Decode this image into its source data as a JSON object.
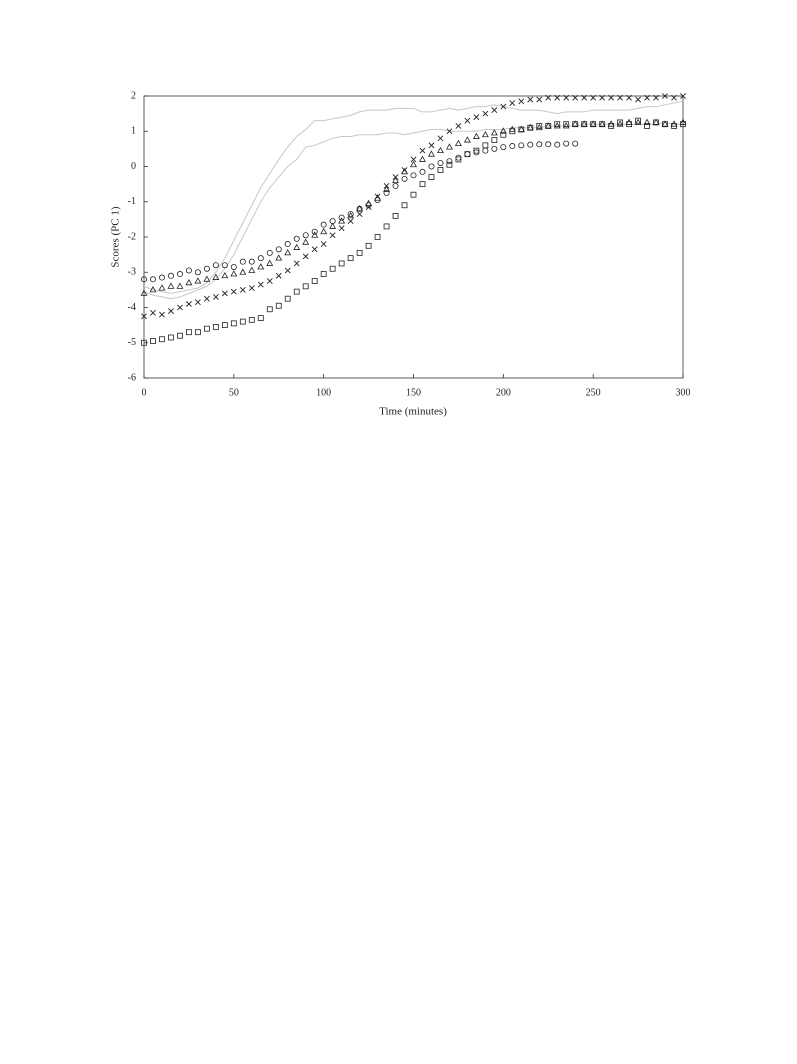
{
  "chart_data": {
    "type": "scatter",
    "xlabel": "Time (minutes)",
    "ylabel": "Scores (PC 1)",
    "xlim": [
      0,
      300
    ],
    "ylim": [
      -6,
      2
    ],
    "xticks": [
      0,
      50,
      100,
      150,
      200,
      250,
      300
    ],
    "yticks": [
      -6,
      -5,
      -4,
      -3,
      -2,
      -1,
      0,
      1,
      2
    ],
    "grid": false,
    "x": [
      0,
      5,
      10,
      15,
      20,
      25,
      30,
      35,
      40,
      45,
      50,
      55,
      60,
      65,
      70,
      75,
      80,
      85,
      90,
      95,
      100,
      105,
      110,
      115,
      120,
      125,
      130,
      135,
      140,
      145,
      150,
      155,
      160,
      165,
      170,
      175,
      180,
      185,
      190,
      195,
      200,
      205,
      210,
      215,
      220,
      225,
      230,
      235,
      240,
      245,
      250,
      255,
      260,
      265,
      270,
      275,
      280,
      285,
      290,
      295,
      300
    ],
    "series": [
      {
        "marker": "line",
        "color": "#c8c8c8",
        "values": [
          -3.4,
          -3.5,
          -3.55,
          -3.6,
          -3.55,
          -3.5,
          -3.45,
          -3.3,
          -3.0,
          -2.6,
          -2.1,
          -1.6,
          -1.1,
          -0.6,
          -0.2,
          0.2,
          0.55,
          0.85,
          1.05,
          1.3,
          1.3,
          1.35,
          1.4,
          1.45,
          1.55,
          1.6,
          1.6,
          1.6,
          1.65,
          1.65,
          1.65,
          1.55,
          1.55,
          1.6,
          1.65,
          1.6,
          1.65,
          1.7,
          1.7,
          1.75,
          1.7,
          1.65,
          1.6,
          1.6,
          1.6,
          1.55,
          1.5,
          1.55,
          1.55,
          1.55,
          1.6,
          1.6,
          1.6,
          1.6,
          1.6,
          1.65,
          1.7,
          1.7,
          1.75,
          1.8,
          1.85
        ]
      },
      {
        "marker": "line",
        "color": "#c8c8c8",
        "values": [
          -3.55,
          -3.65,
          -3.7,
          -3.75,
          -3.7,
          -3.6,
          -3.5,
          -3.4,
          -3.2,
          -2.9,
          -2.5,
          -2.0,
          -1.5,
          -1.0,
          -0.6,
          -0.3,
          0.0,
          0.2,
          0.55,
          0.6,
          0.7,
          0.8,
          0.85,
          0.85,
          0.9,
          0.9,
          0.9,
          0.95,
          0.95,
          0.9,
          0.95,
          1.0,
          1.05,
          1.05,
          1.0,
          1.0,
          1.0,
          1.0,
          1.05,
          1.05,
          1.05,
          1.1,
          1.1,
          1.1,
          1.1,
          1.15,
          1.15,
          1.15,
          1.15,
          1.2,
          1.2,
          1.2,
          1.2,
          1.2,
          1.2,
          1.2,
          1.2,
          1.2,
          1.25,
          1.2,
          1.2
        ]
      },
      {
        "marker": "circle",
        "color": "#222222",
        "values": [
          -3.2,
          -3.2,
          -3.15,
          -3.1,
          -3.05,
          -2.95,
          -3.0,
          -2.9,
          -2.8,
          -2.8,
          -2.85,
          -2.7,
          -2.7,
          -2.6,
          -2.45,
          -2.35,
          -2.2,
          -2.05,
          -1.95,
          -1.85,
          -1.65,
          -1.55,
          -1.45,
          -1.35,
          -1.2,
          -1.1,
          -0.95,
          -0.75,
          -0.55,
          -0.35,
          -0.25,
          -0.15,
          0.0,
          0.1,
          0.15,
          0.25,
          0.35,
          0.4,
          0.45,
          0.5,
          0.55,
          0.58,
          0.6,
          0.62,
          0.63,
          0.63,
          0.62,
          0.65,
          0.65,
          null,
          null,
          null,
          null,
          null,
          null,
          null,
          null,
          null,
          null,
          null,
          null
        ]
      },
      {
        "marker": "triangle",
        "color": "#222222",
        "values": [
          -3.6,
          -3.5,
          -3.45,
          -3.4,
          -3.4,
          -3.3,
          -3.25,
          -3.2,
          -3.15,
          -3.1,
          -3.05,
          -3.0,
          -2.95,
          -2.85,
          -2.75,
          -2.6,
          -2.45,
          -2.3,
          -2.15,
          -1.95,
          -1.85,
          -1.7,
          -1.55,
          -1.4,
          -1.2,
          -1.05,
          -0.9,
          -0.65,
          -0.4,
          -0.15,
          0.05,
          0.2,
          0.35,
          0.45,
          0.55,
          0.65,
          0.75,
          0.85,
          0.9,
          0.95,
          1.0,
          1.05,
          1.05,
          1.1,
          1.1,
          1.15,
          1.15,
          1.15,
          1.2,
          1.2,
          1.2,
          1.2,
          1.2,
          1.2,
          1.25,
          1.25,
          1.25,
          1.25,
          1.2,
          1.2,
          1.25
        ]
      },
      {
        "marker": "cross",
        "color": "#222222",
        "values": [
          -4.25,
          -4.15,
          -4.2,
          -4.1,
          -4.0,
          -3.9,
          -3.85,
          -3.75,
          -3.7,
          -3.6,
          -3.55,
          -3.5,
          -3.45,
          -3.35,
          -3.25,
          -3.1,
          -2.95,
          -2.75,
          -2.55,
          -2.35,
          -2.2,
          -1.95,
          -1.75,
          -1.55,
          -1.35,
          -1.15,
          -0.85,
          -0.55,
          -0.3,
          -0.1,
          0.2,
          0.45,
          0.6,
          0.8,
          1.0,
          1.15,
          1.3,
          1.4,
          1.5,
          1.6,
          1.7,
          1.8,
          1.85,
          1.9,
          1.9,
          1.95,
          1.95,
          1.95,
          1.95,
          1.95,
          1.95,
          1.95,
          1.95,
          1.95,
          1.95,
          1.9,
          1.95,
          1.95,
          2.0,
          1.95,
          2.0
        ]
      },
      {
        "marker": "square",
        "color": "#222222",
        "values": [
          -5.0,
          -4.95,
          -4.9,
          -4.85,
          -4.8,
          -4.7,
          -4.7,
          -4.6,
          -4.55,
          -4.5,
          -4.45,
          -4.4,
          -4.35,
          -4.3,
          -4.05,
          -3.95,
          -3.75,
          -3.55,
          -3.4,
          -3.25,
          -3.05,
          -2.9,
          -2.75,
          -2.6,
          -2.45,
          -2.25,
          -2.0,
          -1.7,
          -1.4,
          -1.1,
          -0.8,
          -0.5,
          -0.3,
          -0.1,
          0.05,
          0.2,
          0.35,
          0.45,
          0.6,
          0.75,
          0.9,
          1.0,
          1.05,
          1.1,
          1.15,
          1.15,
          1.2,
          1.2,
          1.2,
          1.2,
          1.2,
          1.2,
          1.15,
          1.25,
          1.2,
          1.3,
          1.15,
          1.25,
          1.2,
          1.15,
          1.2
        ]
      }
    ]
  }
}
